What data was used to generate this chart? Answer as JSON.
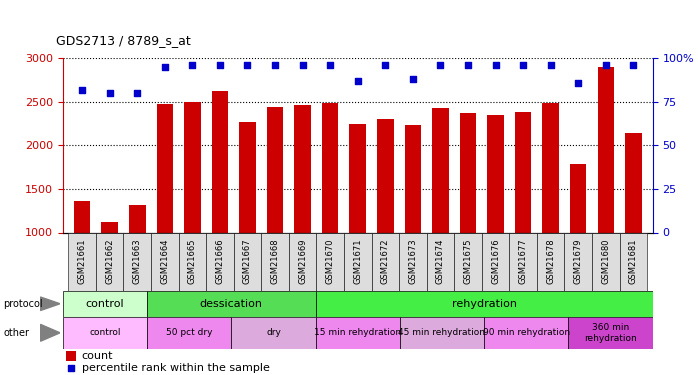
{
  "title": "GDS2713 / 8789_s_at",
  "samples": [
    "GSM21661",
    "GSM21662",
    "GSM21663",
    "GSM21664",
    "GSM21665",
    "GSM21666",
    "GSM21667",
    "GSM21668",
    "GSM21669",
    "GSM21670",
    "GSM21671",
    "GSM21672",
    "GSM21673",
    "GSM21674",
    "GSM21675",
    "GSM21676",
    "GSM21677",
    "GSM21678",
    "GSM21679",
    "GSM21680",
    "GSM21681"
  ],
  "counts": [
    1360,
    1120,
    1310,
    2470,
    2500,
    2620,
    2270,
    2440,
    2460,
    2490,
    2250,
    2300,
    2230,
    2430,
    2370,
    2350,
    2380,
    2490,
    1790,
    2900,
    2140
  ],
  "percentile": [
    82,
    80,
    80,
    95,
    96,
    96,
    96,
    96,
    96,
    96,
    87,
    96,
    88,
    96,
    96,
    96,
    96,
    96,
    86,
    96,
    96
  ],
  "bar_color": "#cc0000",
  "dot_color": "#0000cc",
  "ylim_left": [
    1000,
    3000
  ],
  "ylim_right": [
    0,
    100
  ],
  "yticks_left": [
    1000,
    1500,
    2000,
    2500,
    3000
  ],
  "yticks_right": [
    0,
    25,
    50,
    75,
    100
  ],
  "protocol_row": {
    "label": "protocol",
    "segments": [
      {
        "text": "control",
        "start": 0,
        "end": 3,
        "color": "#ccffcc"
      },
      {
        "text": "dessication",
        "start": 3,
        "end": 9,
        "color": "#55dd55"
      },
      {
        "text": "rehydration",
        "start": 9,
        "end": 21,
        "color": "#44ee44"
      }
    ]
  },
  "other_row": {
    "label": "other",
    "segments": [
      {
        "text": "control",
        "start": 0,
        "end": 3,
        "color": "#ffbbff"
      },
      {
        "text": "50 pct dry",
        "start": 3,
        "end": 6,
        "color": "#ee88ee"
      },
      {
        "text": "dry",
        "start": 6,
        "end": 9,
        "color": "#ddaadd"
      },
      {
        "text": "15 min rehydration",
        "start": 9,
        "end": 12,
        "color": "#ee88ee"
      },
      {
        "text": "45 min rehydration",
        "start": 12,
        "end": 15,
        "color": "#ddaadd"
      },
      {
        "text": "90 min rehydration",
        "start": 15,
        "end": 18,
        "color": "#ee88ee"
      },
      {
        "text": "360 min\nrehydration",
        "start": 18,
        "end": 21,
        "color": "#cc44cc"
      }
    ]
  },
  "tick_label_color_left": "#cc0000",
  "tick_label_color_right": "#0000cc",
  "xtick_bg_color": "#dddddd"
}
